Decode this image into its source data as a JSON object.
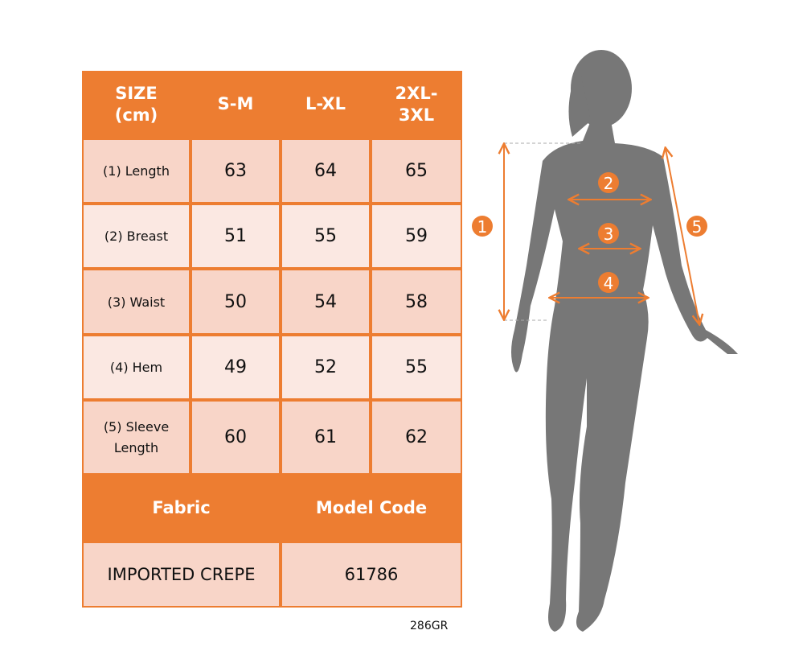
{
  "colors": {
    "accent": "#ed7d31",
    "row_dark": "#f8d5c8",
    "row_light": "#fbe8e2",
    "silhouette": "#777777"
  },
  "table": {
    "headers": [
      "SIZE (cm)",
      "S-M",
      "L-XL",
      "2XL-3XL"
    ],
    "rows": [
      {
        "label": "(1) Length",
        "values": [
          "63",
          "64",
          "65"
        ]
      },
      {
        "label": "(2) Breast",
        "values": [
          "51",
          "55",
          "59"
        ]
      },
      {
        "label": "(3) Waist",
        "values": [
          "50",
          "54",
          "58"
        ]
      },
      {
        "label": "(4) Hem",
        "values": [
          "49",
          "52",
          "55"
        ]
      },
      {
        "label": "(5) Sleeve Length",
        "values": [
          "60",
          "61",
          "62"
        ]
      }
    ],
    "footer_headers": [
      "Fabric",
      "Model Code"
    ],
    "footer_values": [
      "IMPORTED CREPE",
      "61786"
    ]
  },
  "code": "286GR",
  "markers": [
    "1",
    "2",
    "3",
    "4",
    "5"
  ]
}
